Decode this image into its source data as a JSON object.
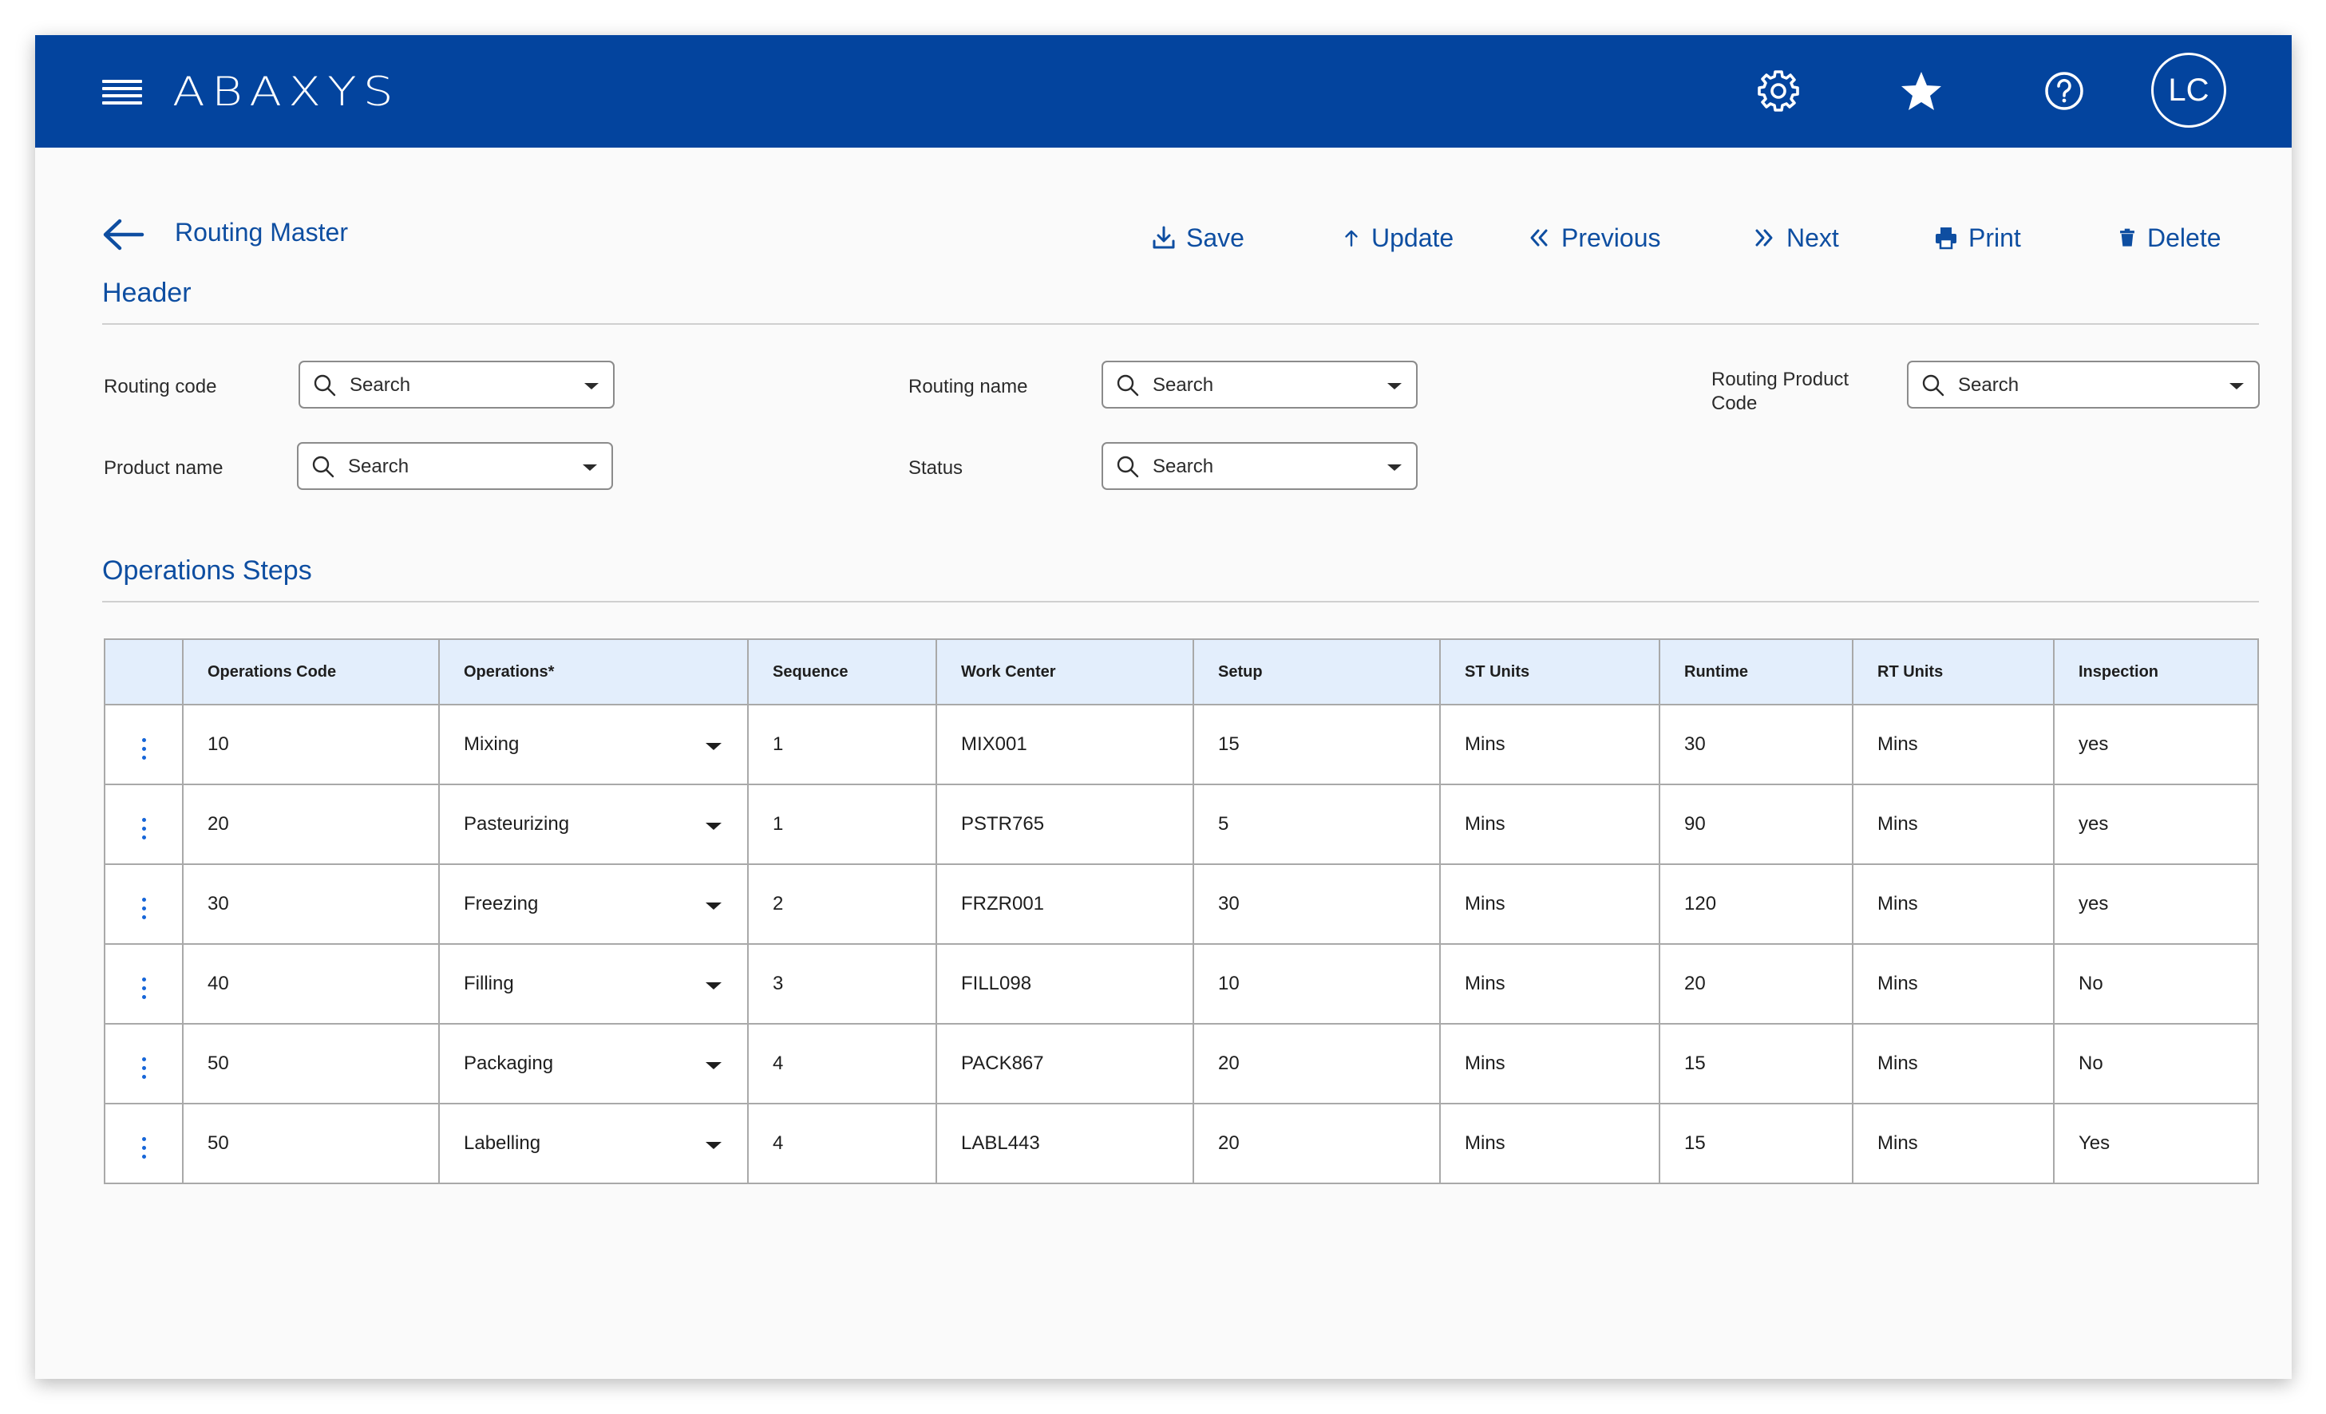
{
  "app": {
    "brand": "ABAXYS",
    "avatar_initials": "LC"
  },
  "page": {
    "title": "Routing Master",
    "actions": {
      "save": "Save",
      "update": "Update",
      "previous": "Previous",
      "next": "Next",
      "print": "Print",
      "delete": "Delete"
    }
  },
  "header_section": {
    "title": "Header",
    "fields": {
      "routing_code": {
        "label": "Routing code",
        "placeholder": "Search"
      },
      "routing_name": {
        "label": "Routing name",
        "placeholder": "Search"
      },
      "routing_product_code": {
        "label": "Routing Product Code",
        "placeholder": "Search"
      },
      "product_name": {
        "label": "Product name",
        "placeholder": "Search"
      },
      "status": {
        "label": "Status",
        "placeholder": "Search"
      }
    }
  },
  "operations_section": {
    "title": "Operations Steps",
    "columns": [
      "Operations Code",
      "Operations*",
      "Sequence",
      "Work Center",
      "Setup",
      "ST Units",
      "Runtime",
      "RT Units",
      "Inspection"
    ],
    "rows": [
      {
        "code": "10",
        "operation": "Mixing",
        "sequence": "1",
        "work_center": "MIX001",
        "setup": "15",
        "st_units": "Mins",
        "runtime": "30",
        "rt_units": "Mins",
        "inspection": "yes"
      },
      {
        "code": "20",
        "operation": "Pasteurizing",
        "sequence": "1",
        "work_center": "PSTR765",
        "setup": "5",
        "st_units": "Mins",
        "runtime": "90",
        "rt_units": "Mins",
        "inspection": "yes"
      },
      {
        "code": "30",
        "operation": "Freezing",
        "sequence": "2",
        "work_center": "FRZR001",
        "setup": "30",
        "st_units": "Mins",
        "runtime": "120",
        "rt_units": "Mins",
        "inspection": "yes"
      },
      {
        "code": "40",
        "operation": "Filling",
        "sequence": "3",
        "work_center": "FILL098",
        "setup": "10",
        "st_units": "Mins",
        "runtime": "20",
        "rt_units": "Mins",
        "inspection": "No"
      },
      {
        "code": "50",
        "operation": "Packaging",
        "sequence": "4",
        "work_center": "PACK867",
        "setup": "20",
        "st_units": "Mins",
        "runtime": "15",
        "rt_units": "Mins",
        "inspection": "No"
      },
      {
        "code": "50",
        "operation": "Labelling",
        "sequence": "4",
        "work_center": "LABL443",
        "setup": "20",
        "st_units": "Mins",
        "runtime": "15",
        "rt_units": "Mins",
        "inspection": "Yes"
      }
    ]
  },
  "icons": {
    "menu": "hamburger-icon",
    "settings": "gear-icon",
    "favorites": "star-icon",
    "help": "help-icon",
    "back": "arrow-left-icon",
    "row_menu": "kebab-icon"
  },
  "colors": {
    "brand_blue": "#03449e",
    "accent_text": "#0e4ea1",
    "table_header_bg": "#e3eefc",
    "kebab_blue": "#1565d8"
  }
}
